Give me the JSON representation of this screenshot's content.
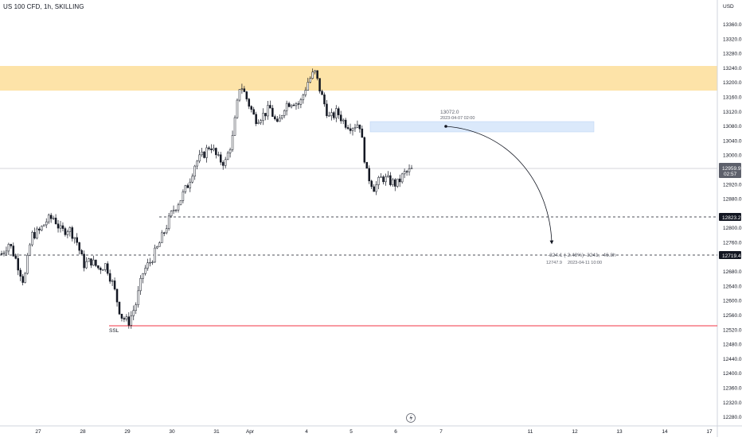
{
  "header": {
    "symbol": "US 100 CFD",
    "interval": "1h",
    "author": "SKILLING",
    "separator": ", "
  },
  "price_axis": {
    "currency": "USD",
    "ticks": [
      "13360.0",
      "13320.0",
      "13280.0",
      "13240.0",
      "13200.0",
      "13160.0",
      "13120.0",
      "13080.0",
      "13040.0",
      "13000.0",
      "12920.0",
      "12880.0",
      "12840.0",
      "12800.0",
      "12760.0",
      "12720.0",
      "12680.0",
      "12640.0",
      "12600.0",
      "12560.0",
      "12520.0",
      "12480.0",
      "12440.0",
      "12400.0",
      "12360.0",
      "12320.0",
      "12280.0"
    ],
    "current_price": "12959.9",
    "countdown": "02:57",
    "level_1": "12823.2",
    "level_2": "12719.4"
  },
  "time_axis": {
    "ticks": [
      "27",
      "28",
      "29",
      "30",
      "31",
      "Apr",
      "4",
      "5",
      "6",
      "7",
      "11",
      "12",
      "13",
      "14",
      "17"
    ]
  },
  "annotations": {
    "ssl_label": "SSL",
    "target_price": "13072.0",
    "target_time": "2023-04-07 02:00",
    "measure_line": "-324.1 (-2.48%) -3241, -46.8h",
    "measure_price": "12747.9",
    "measure_time": "2023-04-11  10:00"
  },
  "colors": {
    "supply_zone": "#fde3a8",
    "target_zone": "#dbe9fb",
    "candle": "#131722",
    "ssl_line": "#f23645",
    "current_badge": "#5d606b",
    "level_badge": "#131722",
    "grid_line": "#d1d4dc"
  },
  "chart_data": {
    "type": "candlestick",
    "symbol": "US 100 CFD",
    "interval": "1h",
    "y_unit": "USD",
    "ylim": [
      12250,
      13400
    ],
    "x_ticks": [
      "27",
      "28",
      "29",
      "30",
      "31",
      "Apr",
      "4",
      "5",
      "6",
      "7",
      "11",
      "12",
      "13",
      "14",
      "17"
    ],
    "horizontal_levels": [
      {
        "price": 12823.2,
        "style": "dashed"
      },
      {
        "price": 12719.4,
        "style": "dashed"
      },
      {
        "price": 12521,
        "style": "solid",
        "color": "#f23645",
        "label": "SSL"
      },
      {
        "price": 12959.9,
        "style": "solid",
        "label": "current"
      }
    ],
    "zones": [
      {
        "price_low": 13175,
        "price_high": 13243,
        "color": "#fde3a8"
      },
      {
        "price_low": 13058,
        "price_high": 13086,
        "color": "#dbe9fb"
      }
    ],
    "close_path": [
      12730,
      12760,
      12710,
      12650,
      12780,
      12790,
      12820,
      12830,
      12790,
      12800,
      12770,
      12700,
      12710,
      12690,
      12700,
      12640,
      12560,
      12540,
      12590,
      12680,
      12710,
      12750,
      12800,
      12850,
      12880,
      12920,
      12980,
      13000,
      13030,
      12990,
      12980,
      13050,
      13200,
      13150,
      13100,
      13110,
      13130,
      13080,
      13140,
      13150,
      13140,
      13200,
      13230,
      13160,
      13100,
      13120,
      13090,
      13080,
      13090,
      12950,
      12910,
      12940,
      12930,
      12920,
      12950,
      12960
    ]
  }
}
